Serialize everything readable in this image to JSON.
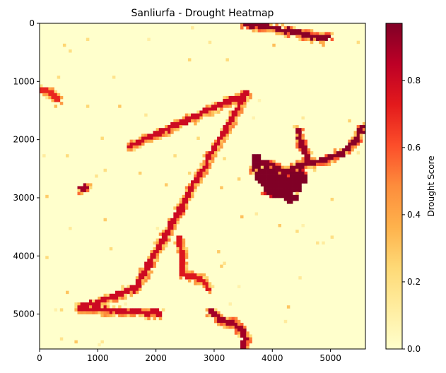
{
  "chart_data": {
    "type": "heatmap",
    "title": "Sanliurfa - Drought Heatmap",
    "xlabel": "",
    "ylabel": "",
    "xlim": [
      0,
      5600
    ],
    "ylim": [
      5600,
      0
    ],
    "x_ticks": [
      0,
      1000,
      2000,
      3000,
      4000,
      5000
    ],
    "y_ticks": [
      0,
      1000,
      2000,
      3000,
      4000,
      5000
    ],
    "grid": false,
    "colormap": "YlOrRd",
    "background_value": 0.0,
    "colorbar": {
      "label": "Drought Score",
      "min": 0.0,
      "max": 0.97,
      "ticks": [
        "0.0",
        "0.2",
        "0.4",
        "0.6",
        "0.8"
      ],
      "tick_values": [
        0.0,
        0.2,
        0.4,
        0.6,
        0.8
      ],
      "stops": [
        "#ffffcc",
        "#ffeda0",
        "#fed976",
        "#feb24c",
        "#fd8d3c",
        "#fc4e2a",
        "#e31a1c",
        "#bd0026",
        "#800026"
      ]
    },
    "high_value_regions": [
      {
        "name": "northern-riverbed",
        "value": 0.95,
        "points": [
          [
            3550,
            20
          ],
          [
            3900,
            40
          ],
          [
            4250,
            120
          ],
          [
            4600,
            200
          ],
          [
            4800,
            260
          ],
          [
            4950,
            230
          ]
        ]
      },
      {
        "name": "eastern-channel",
        "value": 0.95,
        "points": [
          [
            4650,
            2420
          ],
          [
            4900,
            2350
          ],
          [
            5150,
            2250
          ],
          [
            5300,
            2150
          ],
          [
            5450,
            2000
          ],
          [
            5570,
            1750
          ]
        ]
      },
      {
        "name": "central-reservoir-arm",
        "value": 0.95,
        "points": [
          [
            3650,
            2500
          ],
          [
            3800,
            2400
          ],
          [
            4000,
            2450
          ],
          [
            4200,
            2550
          ],
          [
            4350,
            2500
          ],
          [
            4550,
            2420
          ]
        ]
      },
      {
        "name": "upper-tributary",
        "value": 0.92,
        "points": [
          [
            4650,
            2420
          ],
          [
            4500,
            2100
          ],
          [
            4450,
            1850
          ]
        ]
      },
      {
        "name": "southern-river",
        "value": 0.9,
        "points": [
          [
            2950,
            4950
          ],
          [
            3100,
            5100
          ],
          [
            3300,
            5150
          ],
          [
            3450,
            5250
          ],
          [
            3550,
            5450
          ],
          [
            3500,
            5580
          ]
        ]
      },
      {
        "name": "western-patch",
        "value": 0.7,
        "points": [
          [
            0,
            1150
          ],
          [
            150,
            1180
          ],
          [
            250,
            1250
          ],
          [
            320,
            1330
          ]
        ]
      },
      {
        "name": "western-spot",
        "value": 0.9,
        "points": [
          [
            720,
            2850
          ],
          [
            780,
            2800
          ]
        ]
      },
      {
        "name": "southern-stream",
        "value": 0.75,
        "points": [
          [
            2400,
            3700
          ],
          [
            2430,
            3900
          ],
          [
            2450,
            3980
          ],
          [
            2470,
            4300
          ],
          [
            2800,
            4400
          ],
          [
            2900,
            4550
          ]
        ]
      },
      {
        "name": "scattered-spots",
        "value": 0.8,
        "points": [
          [
            1560,
            2100
          ],
          [
            3550,
            1200
          ],
          [
            1650,
            4550
          ],
          [
            690,
            4900
          ],
          [
            2020,
            4990
          ]
        ]
      }
    ],
    "reservoir_blobs": [
      {
        "value": 0.97,
        "center": [
          4150,
          2800
        ],
        "radius": [
          330,
          200
        ]
      },
      {
        "value": 0.97,
        "center": [
          3900,
          2620
        ],
        "radius": [
          200,
          140
        ]
      },
      {
        "value": 0.97,
        "center": [
          4450,
          2650
        ],
        "radius": [
          150,
          130
        ]
      },
      {
        "value": 0.97,
        "center": [
          3720,
          2380
        ],
        "radius": [
          90,
          150
        ]
      },
      {
        "value": 0.97,
        "center": [
          4300,
          3000
        ],
        "radius": [
          140,
          90
        ]
      }
    ]
  }
}
